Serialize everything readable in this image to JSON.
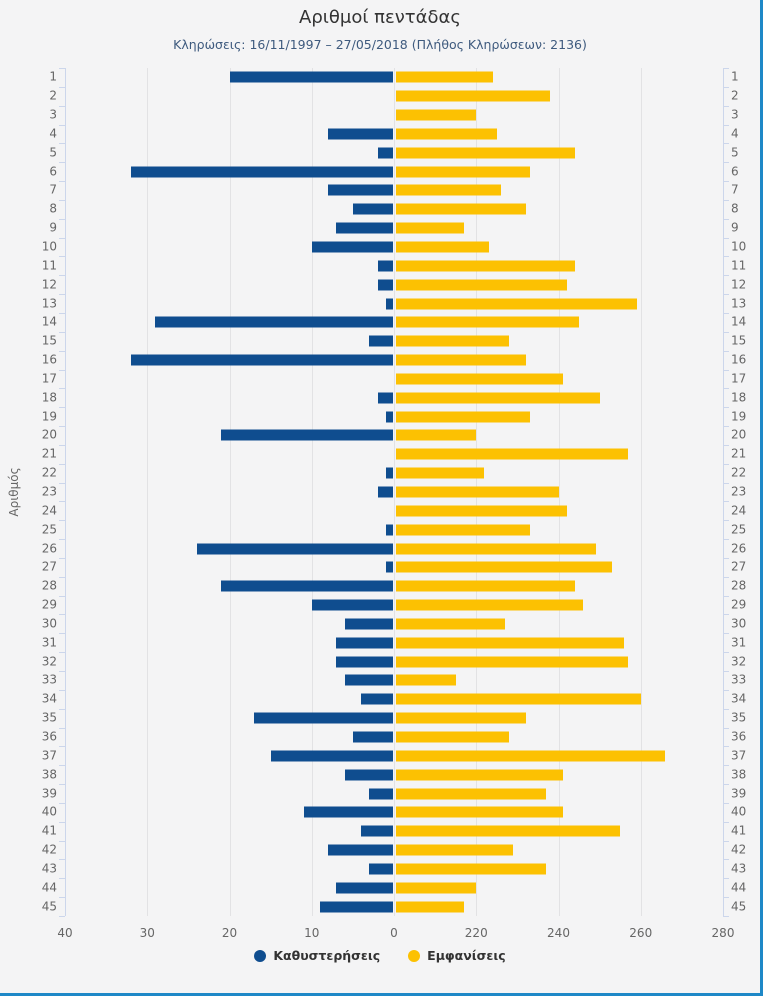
{
  "page": {
    "background": "#f4f4f5",
    "border_color": "#1e88c7"
  },
  "chart_data": {
    "type": "bar",
    "orientation": "horizontal-diverging",
    "title": "Αριθμοί πεντάδας",
    "subtitle": "Κληρώσεις: 16/11/1997 – 27/05/2018 (Πλήθος Κληρώσεων: 2136)",
    "category_axis_label": "Αριθμός",
    "categories": [
      1,
      2,
      3,
      4,
      5,
      6,
      7,
      8,
      9,
      10,
      11,
      12,
      13,
      14,
      15,
      16,
      17,
      18,
      19,
      20,
      21,
      22,
      23,
      24,
      25,
      26,
      27,
      28,
      29,
      30,
      31,
      32,
      33,
      34,
      35,
      36,
      37,
      38,
      39,
      40,
      41,
      42,
      43,
      44,
      45
    ],
    "grid": true,
    "legend_position": "bottom",
    "value_tick_labels": [
      "40",
      "30",
      "20",
      "10",
      "0",
      "220",
      "240",
      "260",
      "280"
    ],
    "series": [
      {
        "name": "Καθυστερήσεις",
        "color": "#0f4d8f",
        "direction": "left",
        "axis_min": 0,
        "axis_max": 40,
        "values": [
          20,
          0,
          0,
          8,
          2,
          32,
          8,
          5,
          7,
          10,
          2,
          2,
          1,
          29,
          3,
          32,
          0,
          2,
          1,
          21,
          0,
          1,
          2,
          0,
          1,
          24,
          1,
          21,
          10,
          6,
          7,
          7,
          6,
          4,
          17,
          5,
          15,
          6,
          3,
          11,
          4,
          8,
          3,
          7,
          9
        ]
      },
      {
        "name": "Εμφανίσεις",
        "color": "#fcc102",
        "direction": "right",
        "axis_min": 200,
        "axis_max": 280,
        "values": [
          224,
          238,
          220,
          225,
          244,
          233,
          226,
          232,
          217,
          223,
          244,
          242,
          259,
          245,
          228,
          232,
          241,
          250,
          233,
          220,
          257,
          222,
          240,
          242,
          233,
          249,
          253,
          244,
          246,
          227,
          256,
          257,
          215,
          260,
          232,
          228,
          266,
          241,
          237,
          241,
          255,
          229,
          237,
          220,
          217
        ]
      }
    ]
  }
}
